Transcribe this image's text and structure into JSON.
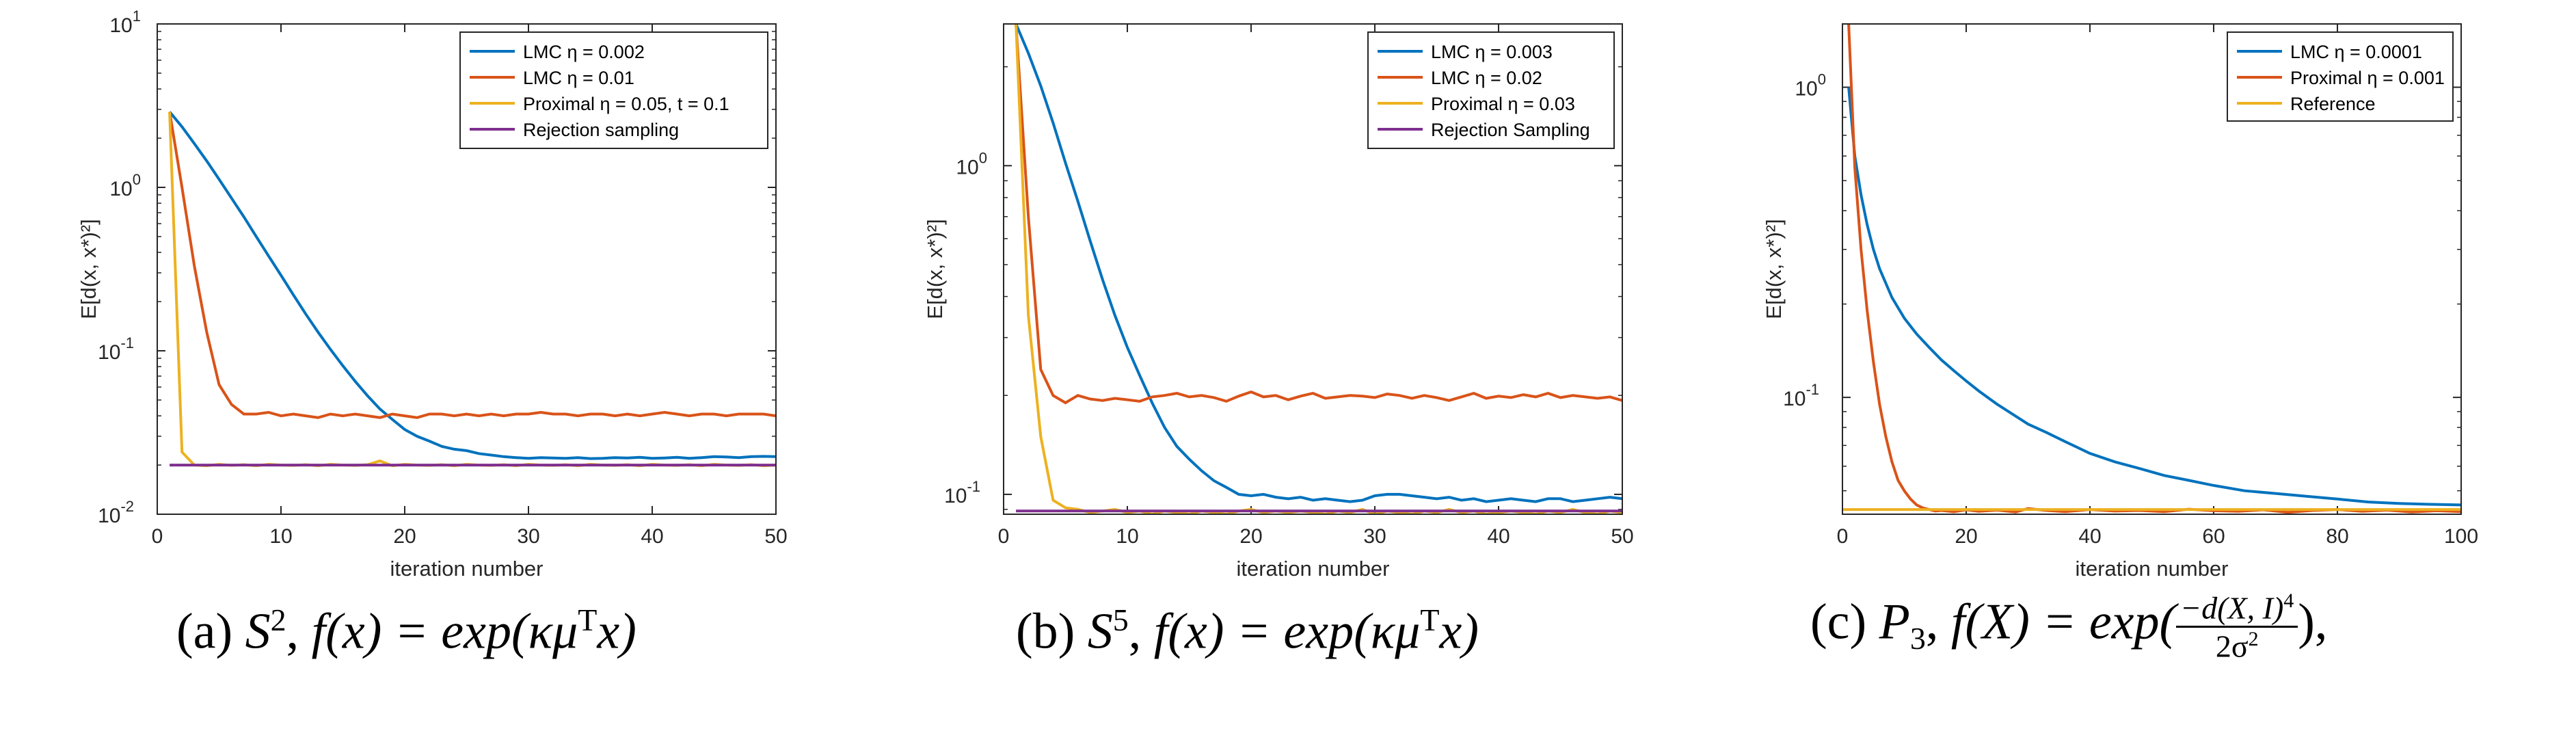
{
  "charts": [
    {
      "id": "a",
      "type": "line",
      "ylabel": "E[d(x, x*)²]",
      "xlabel": "iteration number",
      "yscale": "log",
      "xlim": [
        0,
        50
      ],
      "ylim": [
        0.01,
        10
      ],
      "xticks": [
        0,
        10,
        20,
        30,
        40,
        50
      ],
      "xtick_labels": [
        "0",
        "10",
        "20",
        "30",
        "40",
        "50"
      ],
      "yticks": [
        0.01,
        0.1,
        1,
        10
      ],
      "ytick_labels": [
        [
          "10",
          "-2"
        ],
        [
          "10",
          "-1"
        ],
        [
          "10",
          "0"
        ],
        [
          "10",
          "1"
        ]
      ],
      "legend_position": "top-right",
      "series": [
        {
          "name": "LMC η = 0.002",
          "color": "#0072BD",
          "x": [
            1,
            2,
            3,
            4,
            5,
            6,
            7,
            8,
            9,
            10,
            11,
            12,
            13,
            14,
            15,
            16,
            17,
            18,
            19,
            20,
            21,
            22,
            23,
            24,
            25,
            26,
            27,
            28,
            29,
            30,
            31,
            32,
            33,
            34,
            35,
            36,
            37,
            38,
            39,
            40,
            41,
            42,
            43,
            44,
            45,
            46,
            47,
            48,
            49,
            50
          ],
          "y": [
            2.9,
            2.35,
            1.85,
            1.45,
            1.12,
            0.86,
            0.66,
            0.5,
            0.38,
            0.29,
            0.22,
            0.168,
            0.13,
            0.102,
            0.081,
            0.065,
            0.053,
            0.044,
            0.038,
            0.033,
            0.03,
            0.028,
            0.026,
            0.025,
            0.0245,
            0.0235,
            0.023,
            0.0225,
            0.0222,
            0.022,
            0.0222,
            0.0221,
            0.022,
            0.0222,
            0.0219,
            0.022,
            0.0222,
            0.0221,
            0.0223,
            0.022,
            0.0221,
            0.0223,
            0.022,
            0.0222,
            0.0225,
            0.0224,
            0.0222,
            0.0225,
            0.0226,
            0.0225
          ]
        },
        {
          "name": "LMC η = 0.01",
          "color": "#D95319",
          "x": [
            1,
            2,
            3,
            4,
            5,
            6,
            7,
            8,
            9,
            10,
            11,
            12,
            13,
            14,
            15,
            16,
            17,
            18,
            19,
            20,
            21,
            22,
            23,
            24,
            25,
            26,
            27,
            28,
            29,
            30,
            31,
            32,
            33,
            34,
            35,
            36,
            37,
            38,
            39,
            40,
            41,
            42,
            43,
            44,
            45,
            46,
            47,
            48,
            49,
            50
          ],
          "y": [
            2.9,
            1.0,
            0.33,
            0.13,
            0.062,
            0.047,
            0.041,
            0.041,
            0.042,
            0.04,
            0.041,
            0.04,
            0.039,
            0.041,
            0.04,
            0.041,
            0.04,
            0.039,
            0.041,
            0.04,
            0.039,
            0.041,
            0.041,
            0.04,
            0.041,
            0.04,
            0.041,
            0.04,
            0.041,
            0.041,
            0.042,
            0.041,
            0.041,
            0.04,
            0.041,
            0.041,
            0.04,
            0.041,
            0.04,
            0.041,
            0.042,
            0.041,
            0.04,
            0.041,
            0.041,
            0.04,
            0.041,
            0.041,
            0.041,
            0.04
          ]
        },
        {
          "name": "Proximal η = 0.05, t = 0.1",
          "color": "#EDB120",
          "x": [
            1,
            2,
            3,
            4,
            5,
            6,
            7,
            8,
            9,
            10,
            11,
            12,
            13,
            14,
            15,
            16,
            17,
            18,
            19,
            20,
            21,
            22,
            23,
            24,
            25,
            26,
            27,
            28,
            29,
            30,
            31,
            32,
            33,
            34,
            35,
            36,
            37,
            38,
            39,
            40,
            41,
            42,
            43,
            44,
            45,
            46,
            47,
            48,
            49,
            50
          ],
          "y": [
            2.9,
            0.024,
            0.02,
            0.0198,
            0.0202,
            0.0199,
            0.0201,
            0.0198,
            0.0202,
            0.02,
            0.0199,
            0.0201,
            0.0198,
            0.0202,
            0.02,
            0.0199,
            0.0201,
            0.0212,
            0.0198,
            0.0202,
            0.02,
            0.0199,
            0.0201,
            0.0198,
            0.0202,
            0.02,
            0.0199,
            0.0201,
            0.0198,
            0.0202,
            0.02,
            0.0199,
            0.0201,
            0.0198,
            0.0202,
            0.02,
            0.0199,
            0.0201,
            0.0198,
            0.0202,
            0.02,
            0.0199,
            0.0201,
            0.0198,
            0.0202,
            0.02,
            0.0199,
            0.0201,
            0.0198,
            0.02
          ]
        },
        {
          "name": "Rejection sampling",
          "color": "#7E2F8E",
          "x": [
            1,
            50
          ],
          "y": [
            0.02,
            0.02
          ]
        }
      ]
    },
    {
      "id": "b",
      "type": "line",
      "ylabel": "E[d(x, x*)²]",
      "xlabel": "iteration number",
      "yscale": "log",
      "xlim": [
        0,
        50
      ],
      "ylim": [
        0.087,
        2.7
      ],
      "xticks": [
        0,
        10,
        20,
        30,
        40,
        50
      ],
      "xtick_labels": [
        "0",
        "10",
        "20",
        "30",
        "40",
        "50"
      ],
      "yticks": [
        0.1,
        1
      ],
      "ytick_labels": [
        [
          "10",
          "-1"
        ],
        [
          "10",
          "0"
        ]
      ],
      "legend_position": "top-right",
      "series": [
        {
          "name": "LMC η = 0.003",
          "color": "#0072BD",
          "x": [
            1,
            2,
            3,
            4,
            5,
            6,
            7,
            8,
            9,
            10,
            11,
            12,
            13,
            14,
            15,
            16,
            17,
            18,
            19,
            20,
            21,
            22,
            23,
            24,
            25,
            26,
            27,
            28,
            29,
            30,
            31,
            32,
            33,
            34,
            35,
            36,
            37,
            38,
            39,
            40,
            41,
            42,
            43,
            44,
            45,
            46,
            47,
            48,
            49,
            50
          ],
          "y": [
            2.7,
            2.2,
            1.75,
            1.35,
            1.02,
            0.78,
            0.59,
            0.45,
            0.35,
            0.28,
            0.23,
            0.19,
            0.16,
            0.14,
            0.128,
            0.118,
            0.11,
            0.105,
            0.1,
            0.099,
            0.1,
            0.098,
            0.097,
            0.098,
            0.096,
            0.097,
            0.096,
            0.095,
            0.096,
            0.099,
            0.1,
            0.1,
            0.099,
            0.098,
            0.097,
            0.098,
            0.096,
            0.097,
            0.095,
            0.096,
            0.097,
            0.096,
            0.095,
            0.097,
            0.097,
            0.095,
            0.096,
            0.097,
            0.098,
            0.097
          ]
        },
        {
          "name": "LMC η = 0.02",
          "color": "#D95319",
          "x": [
            1,
            2,
            3,
            4,
            5,
            6,
            7,
            8,
            9,
            10,
            11,
            12,
            13,
            14,
            15,
            16,
            17,
            18,
            19,
            20,
            21,
            22,
            23,
            24,
            25,
            26,
            27,
            28,
            29,
            30,
            31,
            32,
            33,
            34,
            35,
            36,
            37,
            38,
            39,
            40,
            41,
            42,
            43,
            44,
            45,
            46,
            47,
            48,
            49,
            50
          ],
          "y": [
            2.7,
            0.7,
            0.24,
            0.2,
            0.19,
            0.2,
            0.195,
            0.193,
            0.196,
            0.194,
            0.192,
            0.198,
            0.2,
            0.203,
            0.198,
            0.2,
            0.197,
            0.192,
            0.199,
            0.205,
            0.198,
            0.2,
            0.194,
            0.199,
            0.203,
            0.196,
            0.198,
            0.2,
            0.199,
            0.197,
            0.202,
            0.2,
            0.196,
            0.2,
            0.197,
            0.193,
            0.198,
            0.203,
            0.196,
            0.199,
            0.197,
            0.201,
            0.198,
            0.203,
            0.197,
            0.2,
            0.198,
            0.196,
            0.198,
            0.193
          ]
        },
        {
          "name": "Proximal η = 0.03",
          "color": "#EDB120",
          "x": [
            1,
            2,
            3,
            4,
            5,
            6,
            7,
            8,
            9,
            10,
            11,
            12,
            13,
            14,
            15,
            16,
            17,
            18,
            19,
            20,
            21,
            22,
            23,
            24,
            25,
            26,
            27,
            28,
            29,
            30,
            31,
            32,
            33,
            34,
            35,
            36,
            37,
            38,
            39,
            40,
            41,
            42,
            43,
            44,
            45,
            46,
            47,
            48,
            49,
            50
          ],
          "y": [
            2.7,
            0.35,
            0.15,
            0.096,
            0.091,
            0.09,
            0.088,
            0.089,
            0.09,
            0.088,
            0.089,
            0.087,
            0.089,
            0.088,
            0.087,
            0.089,
            0.088,
            0.087,
            0.089,
            0.09,
            0.088,
            0.089,
            0.088,
            0.089,
            0.088,
            0.087,
            0.089,
            0.088,
            0.09,
            0.087,
            0.089,
            0.088,
            0.087,
            0.089,
            0.088,
            0.09,
            0.088,
            0.089,
            0.087,
            0.088,
            0.089,
            0.088,
            0.087,
            0.089,
            0.088,
            0.09,
            0.088,
            0.087,
            0.089,
            0.088
          ]
        },
        {
          "name": "Rejection Sampling",
          "color": "#7E2F8E",
          "x": [
            1,
            50
          ],
          "y": [
            0.089,
            0.089
          ]
        }
      ]
    },
    {
      "id": "c",
      "type": "line",
      "ylabel": "E[d(x, x*)²]",
      "xlabel": "iteration number",
      "yscale": "log",
      "xlim": [
        0,
        100
      ],
      "ylim": [
        0.042,
        1.6
      ],
      "xticks": [
        0,
        20,
        40,
        60,
        80,
        100
      ],
      "xtick_labels": [
        "0",
        "20",
        "40",
        "60",
        "80",
        "100"
      ],
      "yticks": [
        0.1,
        1
      ],
      "ytick_labels": [
        [
          "10",
          "-1"
        ],
        [
          "10",
          "0"
        ]
      ],
      "legend_position": "top-right",
      "series": [
        {
          "name": "LMC η = 0.0001",
          "color": "#0072BD",
          "x": [
            1,
            2,
            3,
            4,
            5,
            6,
            8,
            10,
            12,
            14,
            16,
            18,
            20,
            22,
            25,
            28,
            30,
            33,
            36,
            40,
            44,
            48,
            52,
            56,
            60,
            65,
            70,
            75,
            80,
            85,
            90,
            95,
            100
          ],
          "y": [
            1.0,
            0.6,
            0.45,
            0.36,
            0.3,
            0.26,
            0.21,
            0.18,
            0.16,
            0.145,
            0.132,
            0.122,
            0.113,
            0.105,
            0.095,
            0.087,
            0.082,
            0.077,
            0.072,
            0.066,
            0.062,
            0.059,
            0.056,
            0.054,
            0.052,
            0.05,
            0.049,
            0.048,
            0.047,
            0.046,
            0.0455,
            0.0452,
            0.045
          ]
        },
        {
          "name": "Proximal η = 0.001",
          "color": "#D95319",
          "x": [
            1,
            2,
            3,
            4,
            5,
            6,
            7,
            8,
            9,
            10,
            11,
            12,
            13,
            14,
            15,
            16,
            18,
            20,
            22,
            25,
            28,
            30,
            33,
            36,
            40,
            44,
            48,
            52,
            56,
            60,
            64,
            68,
            72,
            76,
            80,
            84,
            88,
            92,
            96,
            100
          ],
          "y": [
            1.6,
            0.55,
            0.3,
            0.19,
            0.13,
            0.095,
            0.075,
            0.062,
            0.054,
            0.05,
            0.047,
            0.045,
            0.044,
            0.0435,
            0.043,
            0.0432,
            0.0428,
            0.0434,
            0.0429,
            0.0433,
            0.0427,
            0.0438,
            0.0432,
            0.0428,
            0.0435,
            0.043,
            0.0432,
            0.0428,
            0.0436,
            0.0431,
            0.0429,
            0.0434,
            0.0426,
            0.0432,
            0.0435,
            0.0429,
            0.0433,
            0.0427,
            0.0431,
            0.0428
          ]
        },
        {
          "name": "Reference",
          "color": "#EDB120",
          "x": [
            0,
            100
          ],
          "y": [
            0.0435,
            0.0435
          ]
        }
      ]
    }
  ],
  "captions": {
    "a": {
      "label": "(a)",
      "manifold": "S",
      "manifold_sup": "2",
      "f_expr": "f(x) = exp(κμ",
      "f_sup": "T",
      "f_tail": "x)"
    },
    "b": {
      "label": "(b)",
      "manifold": "S",
      "manifold_sup": "5",
      "f_expr": "f(x) = exp(κμ",
      "f_sup": "T",
      "f_tail": "x)"
    },
    "c": {
      "label": "(c)",
      "manifold": "P",
      "manifold_sub": "3",
      "f_expr": "f(X) = exp(",
      "num": "−d(X, I)",
      "num_sup": "4",
      "den": "2σ",
      "den_sup": "2",
      "f_tail": "),"
    }
  }
}
